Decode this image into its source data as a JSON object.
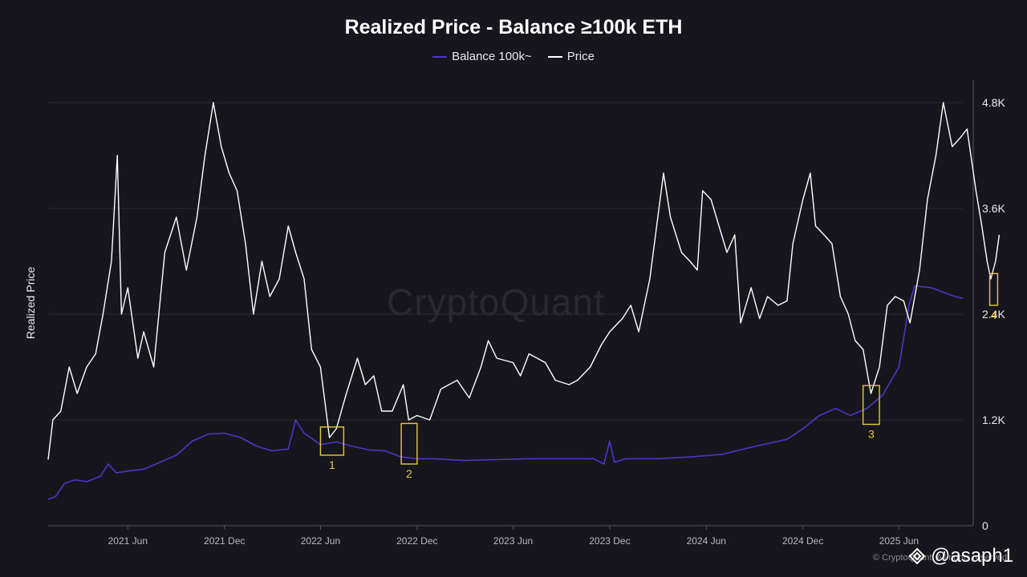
{
  "watermark": "CryptoQuant",
  "copyright": "© CryptoQuant. All rights reserved.",
  "handle": "@asaph1",
  "colors": {
    "background": "#17161c",
    "balance": "#4a37c9",
    "price": "#ffffff",
    "highlight": "#e8c93a",
    "grid": "#2a2930"
  },
  "chart_data": {
    "type": "line",
    "title": "Realized Price - Balance ≥100k ETH",
    "xlabel": "",
    "ylabel": "Realized Price",
    "ylim": [
      0,
      4800
    ],
    "ytick_labels": [
      "0",
      "1.2K",
      "2.4K",
      "3.6K",
      "4.8K"
    ],
    "ytick_values": [
      0,
      1200,
      2400,
      3600,
      4800
    ],
    "xlim": [
      "2021-01-01",
      "2025-09-30"
    ],
    "xtick_labels": [
      "2021 Jun",
      "2021 Dec",
      "2022 Jun",
      "2022 Dec",
      "2023 Jun",
      "2023 Dec",
      "2024 Jun",
      "2024 Dec",
      "2025 Jun"
    ],
    "xtick_dates": [
      "2021-06-01",
      "2021-12-01",
      "2022-06-01",
      "2022-12-01",
      "2023-06-01",
      "2023-12-01",
      "2024-06-01",
      "2024-12-01",
      "2025-06-01"
    ],
    "grid": "horizontal",
    "legend": "top-center",
    "series": [
      {
        "name": "Balance 100k~",
        "color": "#4a37c9",
        "points": [
          [
            "2021-01-01",
            300
          ],
          [
            "2021-01-15",
            330
          ],
          [
            "2021-02-01",
            480
          ],
          [
            "2021-02-20",
            520
          ],
          [
            "2021-03-15",
            500
          ],
          [
            "2021-04-10",
            560
          ],
          [
            "2021-04-25",
            700
          ],
          [
            "2021-05-10",
            600
          ],
          [
            "2021-06-01",
            620
          ],
          [
            "2021-07-01",
            640
          ],
          [
            "2021-08-01",
            720
          ],
          [
            "2021-09-01",
            800
          ],
          [
            "2021-10-01",
            960
          ],
          [
            "2021-11-01",
            1040
          ],
          [
            "2021-12-01",
            1050
          ],
          [
            "2022-01-01",
            1000
          ],
          [
            "2022-02-01",
            900
          ],
          [
            "2022-03-01",
            850
          ],
          [
            "2022-04-01",
            870
          ],
          [
            "2022-04-15",
            1200
          ],
          [
            "2022-05-01",
            1050
          ],
          [
            "2022-06-01",
            920
          ],
          [
            "2022-07-01",
            950
          ],
          [
            "2022-08-01",
            900
          ],
          [
            "2022-09-01",
            860
          ],
          [
            "2022-10-01",
            850
          ],
          [
            "2022-11-01",
            780
          ],
          [
            "2022-12-01",
            760
          ],
          [
            "2023-01-01",
            760
          ],
          [
            "2023-03-01",
            740
          ],
          [
            "2023-05-01",
            750
          ],
          [
            "2023-07-01",
            760
          ],
          [
            "2023-09-01",
            760
          ],
          [
            "2023-11-01",
            760
          ],
          [
            "2023-11-20",
            700
          ],
          [
            "2023-12-01",
            960
          ],
          [
            "2023-12-10",
            720
          ],
          [
            "2024-01-01",
            760
          ],
          [
            "2024-03-01",
            760
          ],
          [
            "2024-05-01",
            780
          ],
          [
            "2024-07-01",
            810
          ],
          [
            "2024-09-01",
            900
          ],
          [
            "2024-11-01",
            980
          ],
          [
            "2024-12-01",
            1100
          ],
          [
            "2025-01-01",
            1250
          ],
          [
            "2025-02-01",
            1330
          ],
          [
            "2025-03-01",
            1250
          ],
          [
            "2025-04-01",
            1330
          ],
          [
            "2025-05-01",
            1480
          ],
          [
            "2025-06-01",
            1800
          ],
          [
            "2025-06-20",
            2500
          ],
          [
            "2025-07-01",
            2720
          ],
          [
            "2025-08-01",
            2700
          ],
          [
            "2025-09-15",
            2600
          ],
          [
            "2025-09-30",
            2580
          ]
        ]
      },
      {
        "name": "Price",
        "color": "#ffffff",
        "points": [
          [
            "2021-01-01",
            750
          ],
          [
            "2021-01-10",
            1200
          ],
          [
            "2021-01-25",
            1300
          ],
          [
            "2021-02-10",
            1800
          ],
          [
            "2021-02-25",
            1500
          ],
          [
            "2021-03-15",
            1800
          ],
          [
            "2021-04-01",
            1950
          ],
          [
            "2021-04-15",
            2400
          ],
          [
            "2021-05-01",
            3000
          ],
          [
            "2021-05-12",
            4200
          ],
          [
            "2021-05-20",
            2400
          ],
          [
            "2021-06-01",
            2700
          ],
          [
            "2021-06-20",
            1900
          ],
          [
            "2021-07-01",
            2200
          ],
          [
            "2021-07-20",
            1800
          ],
          [
            "2021-08-10",
            3100
          ],
          [
            "2021-09-01",
            3500
          ],
          [
            "2021-09-20",
            2900
          ],
          [
            "2021-10-10",
            3500
          ],
          [
            "2021-10-25",
            4200
          ],
          [
            "2021-11-10",
            4800
          ],
          [
            "2021-11-25",
            4300
          ],
          [
            "2021-12-10",
            4000
          ],
          [
            "2021-12-25",
            3800
          ],
          [
            "2022-01-10",
            3200
          ],
          [
            "2022-01-25",
            2400
          ],
          [
            "2022-02-10",
            3000
          ],
          [
            "2022-02-25",
            2600
          ],
          [
            "2022-03-15",
            2800
          ],
          [
            "2022-04-01",
            3400
          ],
          [
            "2022-04-15",
            3100
          ],
          [
            "2022-05-01",
            2800
          ],
          [
            "2022-05-15",
            2000
          ],
          [
            "2022-06-01",
            1800
          ],
          [
            "2022-06-18",
            1000
          ],
          [
            "2022-07-01",
            1100
          ],
          [
            "2022-07-20",
            1500
          ],
          [
            "2022-08-10",
            1900
          ],
          [
            "2022-08-25",
            1600
          ],
          [
            "2022-09-10",
            1700
          ],
          [
            "2022-09-25",
            1300
          ],
          [
            "2022-10-15",
            1300
          ],
          [
            "2022-11-05",
            1600
          ],
          [
            "2022-11-15",
            1200
          ],
          [
            "2022-12-01",
            1250
          ],
          [
            "2022-12-25",
            1200
          ],
          [
            "2023-01-15",
            1550
          ],
          [
            "2023-02-15",
            1650
          ],
          [
            "2023-03-10",
            1450
          ],
          [
            "2023-04-01",
            1800
          ],
          [
            "2023-04-15",
            2100
          ],
          [
            "2023-05-01",
            1900
          ],
          [
            "2023-06-01",
            1850
          ],
          [
            "2023-06-15",
            1700
          ],
          [
            "2023-07-01",
            1950
          ],
          [
            "2023-08-01",
            1850
          ],
          [
            "2023-08-20",
            1650
          ],
          [
            "2023-09-15",
            1600
          ],
          [
            "2023-10-01",
            1650
          ],
          [
            "2023-10-25",
            1800
          ],
          [
            "2023-11-15",
            2050
          ],
          [
            "2023-12-01",
            2200
          ],
          [
            "2023-12-25",
            2350
          ],
          [
            "2024-01-10",
            2500
          ],
          [
            "2024-01-25",
            2200
          ],
          [
            "2024-02-15",
            2800
          ],
          [
            "2024-03-12",
            4000
          ],
          [
            "2024-03-25",
            3500
          ],
          [
            "2024-04-15",
            3100
          ],
          [
            "2024-05-01",
            3000
          ],
          [
            "2024-05-15",
            2900
          ],
          [
            "2024-05-25",
            3800
          ],
          [
            "2024-06-10",
            3700
          ],
          [
            "2024-06-25",
            3400
          ],
          [
            "2024-07-10",
            3100
          ],
          [
            "2024-07-25",
            3300
          ],
          [
            "2024-08-05",
            2300
          ],
          [
            "2024-08-25",
            2700
          ],
          [
            "2024-09-10",
            2350
          ],
          [
            "2024-09-25",
            2600
          ],
          [
            "2024-10-15",
            2500
          ],
          [
            "2024-11-01",
            2550
          ],
          [
            "2024-11-12",
            3200
          ],
          [
            "2024-12-01",
            3700
          ],
          [
            "2024-12-15",
            4000
          ],
          [
            "2024-12-25",
            3400
          ],
          [
            "2025-01-10",
            3300
          ],
          [
            "2025-01-25",
            3200
          ],
          [
            "2025-02-10",
            2600
          ],
          [
            "2025-02-25",
            2400
          ],
          [
            "2025-03-10",
            2100
          ],
          [
            "2025-03-25",
            2000
          ],
          [
            "2025-04-09",
            1500
          ],
          [
            "2025-04-25",
            1800
          ],
          [
            "2025-05-10",
            2500
          ],
          [
            "2025-05-25",
            2600
          ],
          [
            "2025-06-10",
            2550
          ],
          [
            "2025-06-22",
            2300
          ],
          [
            "2025-07-10",
            2900
          ],
          [
            "2025-07-25",
            3700
          ],
          [
            "2025-08-10",
            4200
          ],
          [
            "2025-08-24",
            4800
          ],
          [
            "2025-09-10",
            4300
          ],
          [
            "2025-09-25",
            4400
          ],
          [
            "2025-10-08",
            4500
          ],
          [
            "2025-10-25",
            3800
          ],
          [
            "2025-11-05",
            3400
          ],
          [
            "2025-11-15",
            3000
          ],
          [
            "2025-11-22",
            2800
          ],
          [
            "2025-12-01",
            3000
          ],
          [
            "2025-12-08",
            3300
          ]
        ]
      }
    ],
    "annotations": [
      {
        "label": "1",
        "x_from": "2022-06-01",
        "x_to": "2022-07-15",
        "y_from": 800,
        "y_to": 1120
      },
      {
        "label": "2",
        "x_from": "2022-11-01",
        "x_to": "2022-12-01",
        "y_from": 700,
        "y_to": 1160
      },
      {
        "label": "3",
        "x_from": "2025-03-25",
        "x_to": "2025-04-25",
        "y_from": 1150,
        "y_to": 1590
      },
      {
        "label": "4",
        "x_from": "2025-11-20",
        "x_to": "2025-12-05",
        "y_from": 2500,
        "y_to": 2860
      }
    ]
  }
}
